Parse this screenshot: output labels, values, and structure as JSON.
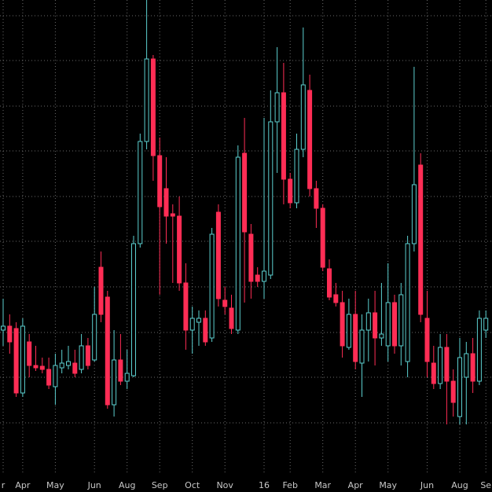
{
  "chart_data": {
    "type": "candlestick",
    "categories": [
      "r",
      null,
      null,
      "Apr",
      null,
      null,
      null,
      null,
      "May",
      null,
      null,
      null,
      null,
      null,
      "Jun",
      null,
      null,
      null,
      null,
      "Aug",
      null,
      null,
      null,
      null,
      "Sep",
      null,
      null,
      null,
      null,
      "Oct",
      null,
      null,
      null,
      null,
      "Nov",
      null,
      null,
      null,
      null,
      null,
      "16",
      null,
      null,
      null,
      "Feb",
      null,
      null,
      null,
      null,
      "Mar",
      null,
      null,
      null,
      null,
      "Apr",
      null,
      null,
      null,
      null,
      "May",
      null,
      null,
      null,
      null,
      null,
      "Jun",
      null,
      null,
      null,
      null,
      "Aug",
      null,
      null,
      null,
      "Se"
    ],
    "open": [
      206,
      211,
      208,
      126,
      191,
      161,
      160,
      156,
      134,
      158,
      161,
      164,
      156,
      186,
      168,
      286,
      248,
      111,
      168,
      141,
      148,
      316,
      446,
      551,
      428,
      386,
      354,
      351,
      266,
      206,
      216,
      221,
      196,
      356,
      244,
      234,
      206,
      431,
      328,
      276,
      268,
      276,
      471,
      508,
      398,
      368,
      436,
      511,
      386,
      361,
      284,
      251,
      241,
      184,
      226,
      164,
      206,
      228,
      196,
      186,
      241,
      186,
      166,
      316,
      416,
      221,
      164,
      138,
      184,
      141,
      96,
      146,
      176,
      141,
      206
    ],
    "high": [
      246,
      226,
      216,
      221,
      201,
      186,
      171,
      171,
      176,
      181,
      186,
      181,
      201,
      196,
      261,
      306,
      256,
      206,
      201,
      181,
      326,
      456,
      626,
      556,
      451,
      426,
      366,
      376,
      291,
      236,
      231,
      231,
      336,
      366,
      261,
      251,
      441,
      476,
      341,
      286,
      476,
      511,
      566,
      546,
      406,
      456,
      591,
      531,
      396,
      366,
      296,
      266,
      256,
      246,
      256,
      226,
      246,
      256,
      266,
      291,
      251,
      266,
      326,
      541,
      431,
      256,
      186,
      201,
      201,
      156,
      196,
      191,
      196,
      231,
      231
    ],
    "low": [
      186,
      176,
      121,
      121,
      146,
      154,
      151,
      131,
      111,
      151,
      156,
      146,
      151,
      156,
      166,
      216,
      106,
      96,
      136,
      131,
      146,
      311,
      436,
      396,
      251,
      316,
      266,
      256,
      181,
      176,
      186,
      186,
      191,
      236,
      226,
      201,
      201,
      241,
      246,
      261,
      246,
      271,
      406,
      366,
      361,
      361,
      426,
      376,
      336,
      281,
      244,
      236,
      171,
      181,
      156,
      121,
      166,
      161,
      186,
      166,
      176,
      161,
      146,
      306,
      216,
      146,
      131,
      131,
      86,
      96,
      86,
      86,
      126,
      136,
      196
    ],
    "close": [
      211,
      191,
      126,
      211,
      161,
      158,
      156,
      136,
      161,
      164,
      166,
      151,
      186,
      161,
      226,
      226,
      111,
      168,
      141,
      151,
      316,
      446,
      551,
      428,
      363,
      351,
      351,
      266,
      206,
      221,
      221,
      191,
      328,
      246,
      236,
      208,
      426,
      331,
      268,
      268,
      281,
      471,
      508,
      398,
      368,
      436,
      518,
      386,
      361,
      286,
      248,
      241,
      186,
      226,
      166,
      206,
      228,
      196,
      201,
      241,
      186,
      251,
      316,
      391,
      226,
      166,
      138,
      184,
      141,
      114,
      171,
      176,
      141,
      221,
      221
    ],
    "ylim": [
      0,
      626
    ],
    "ygrid": [
      88,
      146,
      203,
      261,
      319,
      376,
      434,
      491,
      549,
      606
    ],
    "grid": true,
    "up_color": "#5ccfcf",
    "down_color": "#ff2d55"
  }
}
